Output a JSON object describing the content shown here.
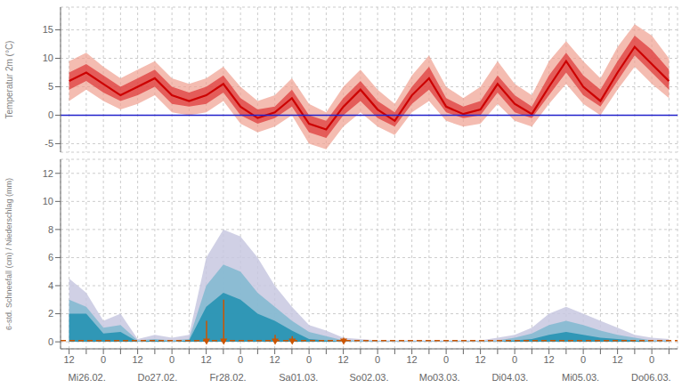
{
  "chart_data": [
    {
      "type": "area",
      "ylabel": "Temperatur 2m (°C)",
      "ylim": [
        -6.5,
        19.0
      ],
      "yticks": [
        -5,
        0,
        5,
        10,
        15
      ],
      "grid": true,
      "tick_labels": "y",
      "series": [
        {
          "type": "band",
          "color": "#f0a090",
          "lower": [
            2.5,
            4.5,
            2.5,
            1.0,
            2.0,
            3.5,
            0.5,
            0.0,
            0.5,
            2.5,
            -1.5,
            -3.0,
            -2.0,
            0.0,
            -5.0,
            -6.0,
            -2.0,
            0.5,
            -2.0,
            -3.5,
            0.5,
            2.5,
            -1.0,
            -2.0,
            -1.5,
            2.0,
            -1.0,
            -2.0,
            2.0,
            5.5,
            2.0,
            0.0,
            4.5,
            8.5,
            5.5,
            3.0
          ],
          "upper": [
            9.5,
            11.0,
            8.5,
            6.5,
            8.0,
            9.5,
            6.5,
            5.5,
            6.5,
            8.5,
            5.0,
            2.5,
            3.5,
            6.5,
            2.0,
            0.5,
            5.0,
            8.0,
            4.5,
            2.0,
            7.0,
            10.5,
            5.0,
            3.0,
            5.0,
            9.5,
            5.5,
            3.5,
            9.5,
            13.0,
            9.5,
            6.5,
            12.0,
            16.0,
            14.0,
            10.0
          ]
        },
        {
          "type": "band",
          "color": "#dd3333",
          "lower": [
            4.5,
            6.0,
            4.0,
            2.5,
            3.5,
            5.0,
            2.0,
            1.5,
            2.0,
            4.0,
            0.0,
            -1.5,
            -0.5,
            1.5,
            -3.0,
            -4.0,
            0.0,
            2.5,
            -0.5,
            -2.0,
            2.0,
            4.5,
            0.5,
            -0.5,
            0.0,
            4.0,
            0.5,
            -0.5,
            3.5,
            7.5,
            3.5,
            1.5,
            6.0,
            10.5,
            7.5,
            4.5
          ],
          "upper": [
            7.5,
            9.0,
            7.0,
            5.0,
            6.5,
            8.0,
            5.0,
            4.0,
            5.0,
            7.0,
            3.0,
            1.0,
            1.5,
            4.5,
            0.0,
            -1.0,
            3.0,
            6.0,
            2.5,
            0.5,
            5.0,
            8.5,
            3.0,
            1.5,
            2.5,
            7.0,
            3.5,
            1.5,
            7.0,
            11.0,
            7.0,
            4.5,
            9.5,
            14.0,
            11.5,
            8.0
          ]
        },
        {
          "type": "line",
          "color": "#cc0000",
          "values": [
            6.0,
            7.5,
            5.5,
            3.5,
            5.0,
            6.5,
            3.5,
            2.5,
            3.5,
            5.5,
            1.5,
            -0.5,
            0.5,
            3.0,
            -1.5,
            -2.5,
            1.5,
            4.5,
            1.0,
            -1.0,
            3.5,
            6.5,
            1.5,
            0.2,
            1.0,
            5.5,
            2.0,
            0.2,
            5.0,
            9.5,
            5.0,
            2.5,
            7.5,
            12.0,
            9.0,
            6.0
          ]
        }
      ],
      "reference_lines": [
        {
          "value": 0,
          "color": "#2222cc"
        }
      ]
    },
    {
      "type": "area",
      "ylabel": "6-std. Schneefall (cm) / Niederschlag (mm)",
      "ylim": [
        -0.5,
        13.0
      ],
      "yticks": [
        0,
        2,
        4,
        6,
        8,
        10,
        12
      ],
      "grid": true,
      "categories": [
        "12",
        null,
        "0",
        null,
        "12",
        null,
        "0",
        null,
        "12",
        null,
        "0",
        null,
        "12",
        null,
        "0",
        null,
        "12",
        null,
        "0",
        null,
        "12",
        null,
        "0",
        null,
        "12",
        null,
        "0",
        null,
        "12",
        null,
        "0",
        null,
        "12",
        null,
        "0",
        null
      ],
      "group_labels": [
        "Mi26.02.",
        "Do27.02.",
        "Fr28.02.",
        "Sa01.03.",
        "So02.03.",
        "Mo03.03.",
        "Di04.03.",
        "Mi05.03.",
        "Do06.03."
      ],
      "series": [
        {
          "type": "area",
          "color": "#c8c8e0",
          "values": [
            4.5,
            3.5,
            1.5,
            2.0,
            0.2,
            0.5,
            0.3,
            0.5,
            6.0,
            8.0,
            7.5,
            6.0,
            4.0,
            2.5,
            1.2,
            0.8,
            0.3,
            0.2,
            0.1,
            0.1,
            0.1,
            0.1,
            0.1,
            0.1,
            0.1,
            0.3,
            0.5,
            1.0,
            2.0,
            2.5,
            2.0,
            1.5,
            1.0,
            0.5,
            0.3,
            0.2
          ]
        },
        {
          "type": "area",
          "color": "#80b8d0",
          "values": [
            3.0,
            2.5,
            1.0,
            1.2,
            0.1,
            0.2,
            0.1,
            0.2,
            4.0,
            5.5,
            5.0,
            3.5,
            2.5,
            1.5,
            0.7,
            0.4,
            0.1,
            0.1,
            0.05,
            0.05,
            0.05,
            0.05,
            0.05,
            0.05,
            0.05,
            0.1,
            0.3,
            0.6,
            1.2,
            1.5,
            1.2,
            0.8,
            0.5,
            0.3,
            0.1,
            0.1
          ]
        },
        {
          "type": "area",
          "color": "#2090b0",
          "values": [
            2.0,
            2.0,
            0.6,
            0.7,
            0.0,
            0.1,
            0.0,
            0.1,
            2.5,
            3.5,
            3.0,
            2.0,
            1.5,
            0.8,
            0.2,
            0.1,
            0.0,
            0.0,
            0.0,
            0.0,
            0.0,
            0.0,
            0.0,
            0.0,
            0.0,
            0.0,
            0.1,
            0.2,
            0.5,
            0.7,
            0.5,
            0.3,
            0.2,
            0.1,
            0.0,
            0.0
          ]
        },
        {
          "type": "stem",
          "color": "#cc5500",
          "marker": "triangle_down",
          "x": [
            8,
            9,
            12,
            13,
            16
          ],
          "values": [
            1.5,
            3.0,
            0.5,
            0.4,
            0.3
          ]
        }
      ],
      "reference_lines": [
        {
          "value": 0.08,
          "color": "#cc5500",
          "line_style": "dashed"
        }
      ]
    }
  ]
}
